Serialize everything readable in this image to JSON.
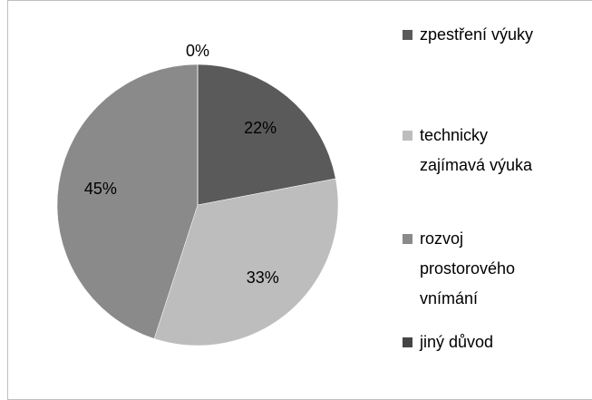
{
  "chart_data": {
    "type": "pie",
    "categories": [
      "zpestření výuky",
      "technicky zajímavá výuka",
      "rozvoj prostorového vnímání",
      "jiný důvod"
    ],
    "values": [
      22,
      33,
      45,
      0
    ],
    "value_labels": [
      "22%",
      "33%",
      "45%",
      "0%"
    ],
    "colors": [
      "#5a5a5a",
      "#bdbdbd",
      "#8a8a8a",
      "#454545"
    ],
    "legend": "right"
  }
}
